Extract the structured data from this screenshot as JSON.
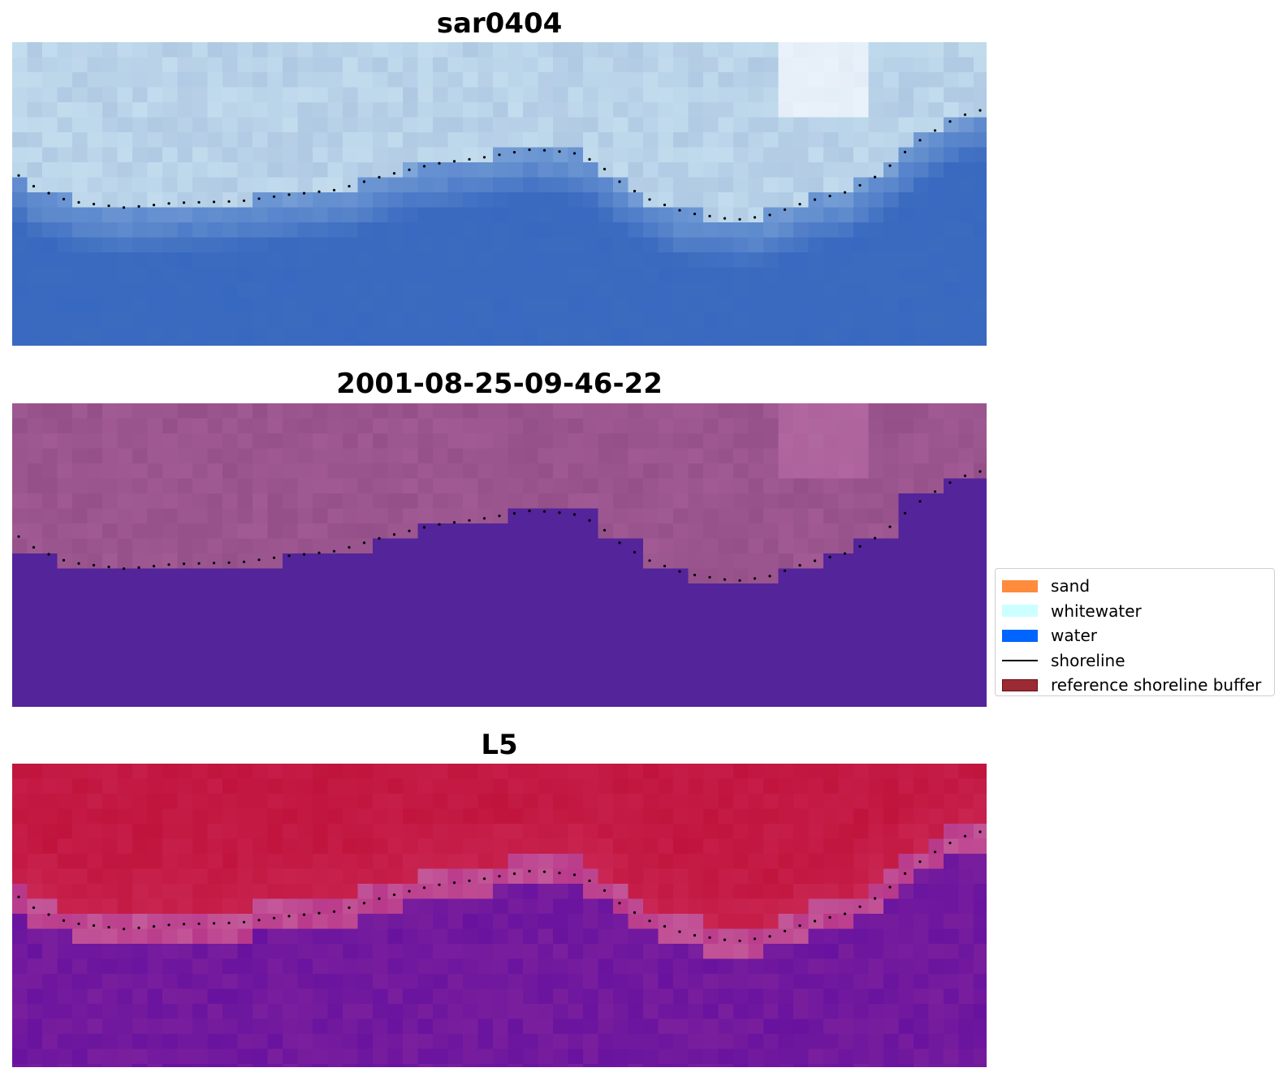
{
  "panels": [
    {
      "title": "sar0404",
      "style": "rgb"
    },
    {
      "title": "2001-08-25-09-46-22",
      "style": "classified"
    },
    {
      "title": "L5",
      "style": "probability"
    }
  ],
  "legend": {
    "items": [
      {
        "label": "sand",
        "kind": "patch",
        "color": "#ff8b3d",
        "edge": "#ff8b3d"
      },
      {
        "label": "whitewater",
        "kind": "patch",
        "color": "#ccffff",
        "edge": "#ccffff"
      },
      {
        "label": "water",
        "kind": "patch",
        "color": "#0064ff",
        "edge": "#0064ff"
      },
      {
        "label": "shoreline",
        "kind": "line",
        "color": "#000000"
      },
      {
        "label": "reference shoreline buffer",
        "kind": "patch",
        "color": "#9b2a35",
        "edge": "#6b1018"
      }
    ]
  },
  "colors": {
    "water_classified": "#53249a",
    "land_classified": "#a15a93",
    "land_probability": "#c0143c",
    "water_probability": "#7a1f9d",
    "water_rgb": "#3b6bbf",
    "whitewater_rgb": "#c9e3f2",
    "shoreline_dots": "#000000"
  }
}
